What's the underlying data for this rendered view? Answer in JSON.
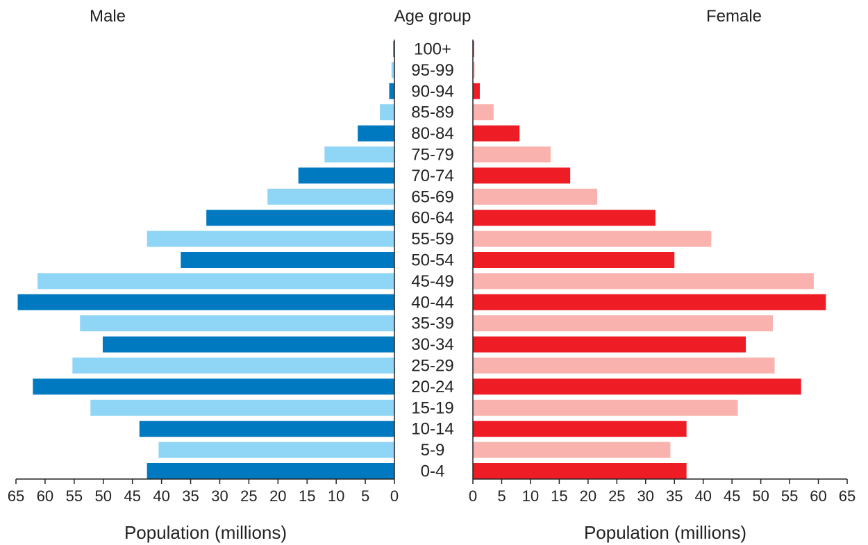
{
  "chart_data": {
    "type": "bar",
    "subtype": "population-pyramid",
    "center_title": "Age group",
    "categories": [
      "0-4",
      "5-9",
      "10-14",
      "15-19",
      "20-24",
      "25-29",
      "30-34",
      "35-39",
      "40-44",
      "45-49",
      "50-54",
      "55-59",
      "60-64",
      "65-69",
      "70-74",
      "75-79",
      "80-84",
      "85-89",
      "90-94",
      "95-99",
      "100+"
    ],
    "series": [
      {
        "name": "Male",
        "side": "left",
        "colors": [
          "#0079c1",
          "#8fd5f5"
        ],
        "values": [
          42.5,
          40.5,
          43.8,
          52.2,
          62.1,
          55.3,
          50.1,
          54.0,
          64.7,
          61.3,
          36.7,
          42.5,
          32.3,
          21.8,
          16.5,
          12.0,
          6.3,
          2.5,
          0.9,
          0.5,
          0.2
        ]
      },
      {
        "name": "Female",
        "side": "right",
        "colors": [
          "#ee1c25",
          "#f9b2ad"
        ],
        "values": [
          37.1,
          34.3,
          37.1,
          46.0,
          57.0,
          52.4,
          47.4,
          52.1,
          61.3,
          59.2,
          35.0,
          41.4,
          31.7,
          21.6,
          16.9,
          13.5,
          8.1,
          3.6,
          1.2,
          0.3,
          0.2
        ]
      }
    ],
    "xlim": [
      0,
      65
    ],
    "xticks": [
      0,
      5,
      10,
      15,
      20,
      25,
      30,
      35,
      40,
      45,
      50,
      55,
      60,
      65
    ],
    "xlabel_left": "Population (millions)",
    "xlabel_right": "Population (millions)",
    "legend": "none",
    "grid": false
  }
}
